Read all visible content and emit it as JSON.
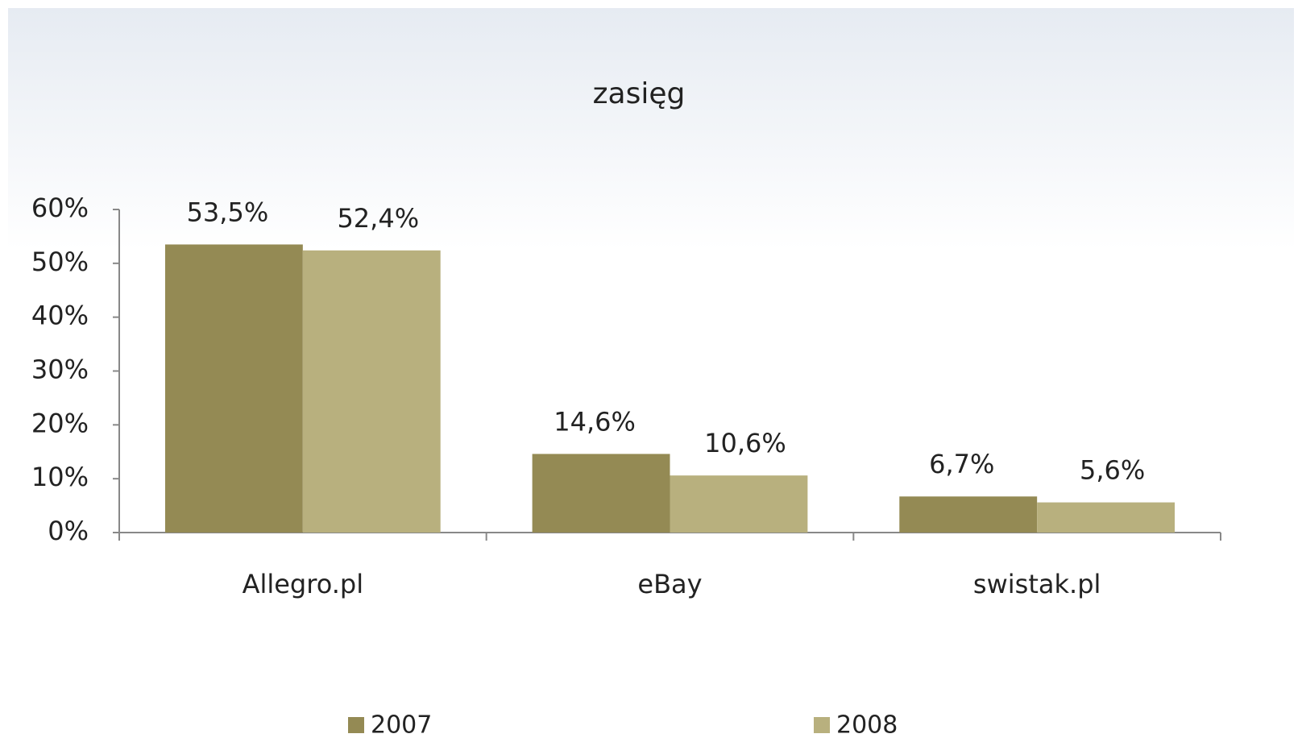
{
  "chart_data": {
    "type": "bar",
    "title": "zasięg",
    "categories": [
      "Allegro.pl",
      "eBay",
      "swistak.pl"
    ],
    "series": [
      {
        "name": "2007",
        "color": "#948a54",
        "values": [
          53.5,
          14.6,
          6.7
        ],
        "value_labels": [
          "53,5%",
          "14,6%",
          "6,7%"
        ]
      },
      {
        "name": "2008",
        "color": "#b8b07e",
        "values": [
          52.4,
          10.6,
          5.6
        ],
        "value_labels": [
          "52,4%",
          "10,6%",
          "5,6%"
        ]
      }
    ],
    "ylim": [
      0,
      60
    ],
    "yticks": [
      {
        "value": 0,
        "label": "0%"
      },
      {
        "value": 10,
        "label": "10%"
      },
      {
        "value": 20,
        "label": "20%"
      },
      {
        "value": 30,
        "label": "30%"
      },
      {
        "value": 40,
        "label": "40%"
      },
      {
        "value": 50,
        "label": "50%"
      },
      {
        "value": 60,
        "label": "60%"
      }
    ],
    "legend": "bottom"
  }
}
